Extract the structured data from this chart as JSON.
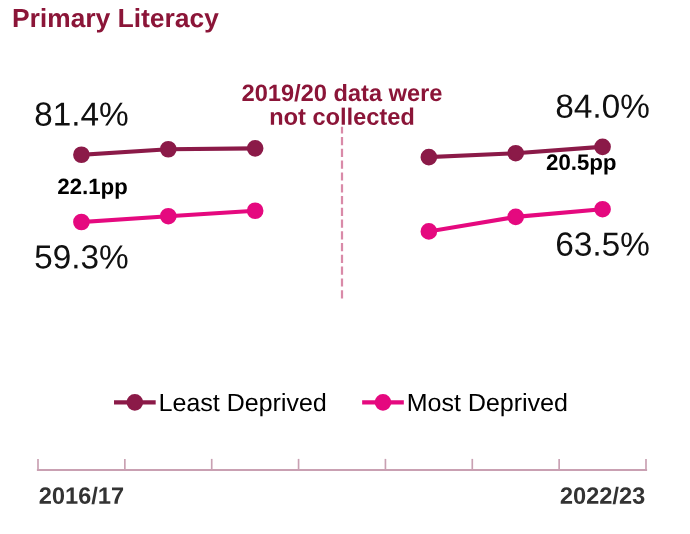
{
  "chart_data": {
    "type": "line",
    "title": "Primary Literacy",
    "categories": [
      "2016/17",
      null,
      null,
      null,
      null,
      null,
      "2022/23"
    ],
    "series": [
      {
        "name": "Least Deprived",
        "color": "#8b1a48",
        "values": [
          81.4,
          83.2,
          83.5,
          null,
          80.6,
          81.9,
          84.0
        ],
        "value_labels": [
          "81.4%",
          null,
          null,
          null,
          null,
          null,
          "84.0%"
        ]
      },
      {
        "name": "Most Deprived",
        "color": "#e5097f",
        "values": [
          59.3,
          61.2,
          63.0,
          null,
          56.2,
          61.0,
          63.5
        ],
        "value_labels": [
          "59.3%",
          null,
          null,
          null,
          null,
          null,
          "63.5%"
        ]
      }
    ],
    "tick_labels": "x",
    "annotations": [
      "2019/20 data were\nnot collected",
      "22.1pp",
      "20.5pp"
    ],
    "marker": "circle",
    "line_style": "solid",
    "legend": "bottom",
    "grid": false
  }
}
